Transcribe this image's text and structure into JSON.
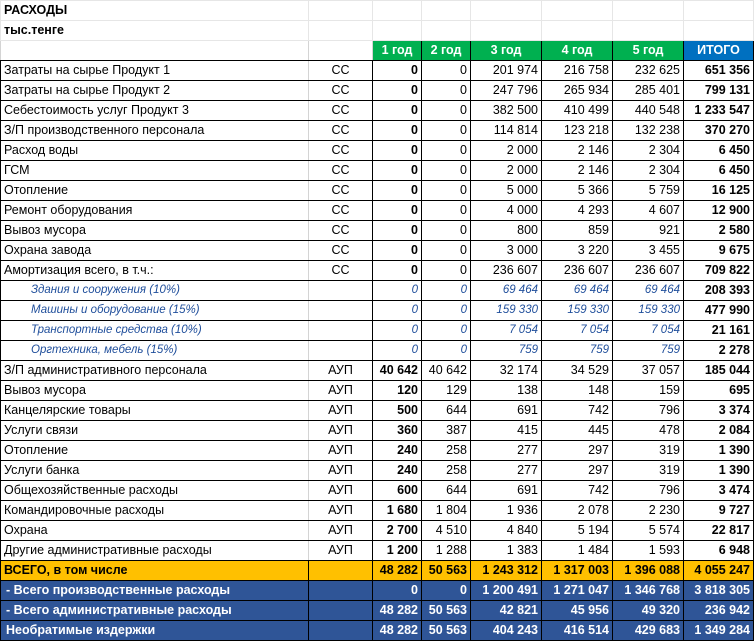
{
  "sheet": {
    "title": "РАСХОДЫ",
    "unit": "тыс.тенге",
    "headers": [
      "1 год",
      "2 год",
      "3 год",
      "4 год",
      "5 год",
      "ИТОГО"
    ]
  },
  "rows": [
    {
      "name": "Затраты на сырье Продукт 1",
      "code": "СС",
      "values": [
        "0",
        "0",
        "201 974",
        "216 758",
        "232 625",
        "651 356"
      ]
    },
    {
      "name": "Затраты на сырье Продукт 2",
      "code": "СС",
      "values": [
        "0",
        "0",
        "247 796",
        "265 934",
        "285 401",
        "799 131"
      ]
    },
    {
      "name": "Себестоимость услуг Продукт 3",
      "code": "СС",
      "values": [
        "0",
        "0",
        "382 500",
        "410 499",
        "440 548",
        "1 233 547"
      ]
    },
    {
      "name": "З/П производственного персонала",
      "code": "СС",
      "values": [
        "0",
        "0",
        "114 814",
        "123 218",
        "132 238",
        "370 270"
      ]
    },
    {
      "name": "Расход воды",
      "code": "СС",
      "values": [
        "0",
        "0",
        "2 000",
        "2 146",
        "2 304",
        "6 450"
      ]
    },
    {
      "name": "ГСМ",
      "code": "СС",
      "values": [
        "0",
        "0",
        "2 000",
        "2 146",
        "2 304",
        "6 450"
      ]
    },
    {
      "name": "Отопление",
      "code": "СС",
      "values": [
        "0",
        "0",
        "5 000",
        "5 366",
        "5 759",
        "16 125"
      ]
    },
    {
      "name": "Ремонт оборудования",
      "code": "СС",
      "values": [
        "0",
        "0",
        "4 000",
        "4 293",
        "4 607",
        "12 900"
      ]
    },
    {
      "name": "Вывоз мусора",
      "code": "СС",
      "values": [
        "0",
        "0",
        "800",
        "859",
        "921",
        "2 580"
      ]
    },
    {
      "name": "Охрана завода",
      "code": "СС",
      "values": [
        "0",
        "0",
        "3 000",
        "3 220",
        "3 455",
        "9 675"
      ]
    },
    {
      "name": "Амортизация всего, в т.ч.:",
      "code": "СС",
      "values": [
        "0",
        "0",
        "236 607",
        "236 607",
        "236 607",
        "709 822"
      ]
    },
    {
      "name": "Здания и сооружения (10%)",
      "code": "",
      "sub": true,
      "values": [
        "0",
        "0",
        "69 464",
        "69 464",
        "69 464",
        "208 393"
      ]
    },
    {
      "name": "Машины и оборудование (15%)",
      "code": "",
      "sub": true,
      "values": [
        "0",
        "0",
        "159 330",
        "159 330",
        "159 330",
        "477 990"
      ]
    },
    {
      "name": "Транспортные средства (10%)",
      "code": "",
      "sub": true,
      "values": [
        "0",
        "0",
        "7 054",
        "7 054",
        "7 054",
        "21 161"
      ]
    },
    {
      "name": "Оргтехника, мебель (15%)",
      "code": "",
      "sub": true,
      "values": [
        "0",
        "0",
        "759",
        "759",
        "759",
        "2 278"
      ]
    },
    {
      "name": "З/П административного персонала",
      "code": "АУП",
      "values": [
        "40 642",
        "40 642",
        "32 174",
        "34 529",
        "37 057",
        "185 044"
      ]
    },
    {
      "name": "Вывоз мусора",
      "code": "АУП",
      "values": [
        "120",
        "129",
        "138",
        "148",
        "159",
        "695"
      ]
    },
    {
      "name": "Канцелярские товары",
      "code": "АУП",
      "values": [
        "500",
        "644",
        "691",
        "742",
        "796",
        "3 374"
      ]
    },
    {
      "name": "Услуги связи",
      "code": "АУП",
      "values": [
        "360",
        "387",
        "415",
        "445",
        "478",
        "2 084"
      ]
    },
    {
      "name": "Отопление",
      "code": "АУП",
      "values": [
        "240",
        "258",
        "277",
        "297",
        "319",
        "1 390"
      ]
    },
    {
      "name": "Услуги банка",
      "code": "АУП",
      "values": [
        "240",
        "258",
        "277",
        "297",
        "319",
        "1 390"
      ]
    },
    {
      "name": "Общехозяйственные расходы",
      "code": "АУП",
      "values": [
        "600",
        "644",
        "691",
        "742",
        "796",
        "3 474"
      ]
    },
    {
      "name": "Командировочные расходы",
      "code": "АУП",
      "values": [
        "1 680",
        "1 804",
        "1 936",
        "2 078",
        "2 230",
        "9 727"
      ]
    },
    {
      "name": "Охрана",
      "code": "АУП",
      "values": [
        "2 700",
        "4 510",
        "4 840",
        "5 194",
        "5 574",
        "22 817"
      ]
    },
    {
      "name": "Другие административные расходы",
      "code": "АУП",
      "values": [
        "1 200",
        "1 288",
        "1 383",
        "1 484",
        "1 593",
        "6 948"
      ]
    }
  ],
  "total": {
    "name": "ВСЕГО, в том числе",
    "values": [
      "48 282",
      "50 563",
      "1 243 312",
      "1 317 003",
      "1 396 088",
      "4 055 247"
    ]
  },
  "summary": [
    {
      "name": " - Всего производственные расходы",
      "values": [
        "0",
        "0",
        "1 200 491",
        "1 271 047",
        "1 346 768",
        "3 818 305"
      ]
    },
    {
      "name": " - Всего административные расходы",
      "values": [
        "48 282",
        "50 563",
        "42 821",
        "45 956",
        "49 320",
        "236 942"
      ]
    },
    {
      "name": "Необратимые издержки",
      "values": [
        "48 282",
        "50 563",
        "404 243",
        "416 514",
        "429 683",
        "1 349 284"
      ]
    }
  ],
  "colors": {
    "header_green": "#00b050",
    "header_blue": "#0070c0",
    "total_orange": "#ffc000",
    "summary_blue": "#2f5597"
  }
}
